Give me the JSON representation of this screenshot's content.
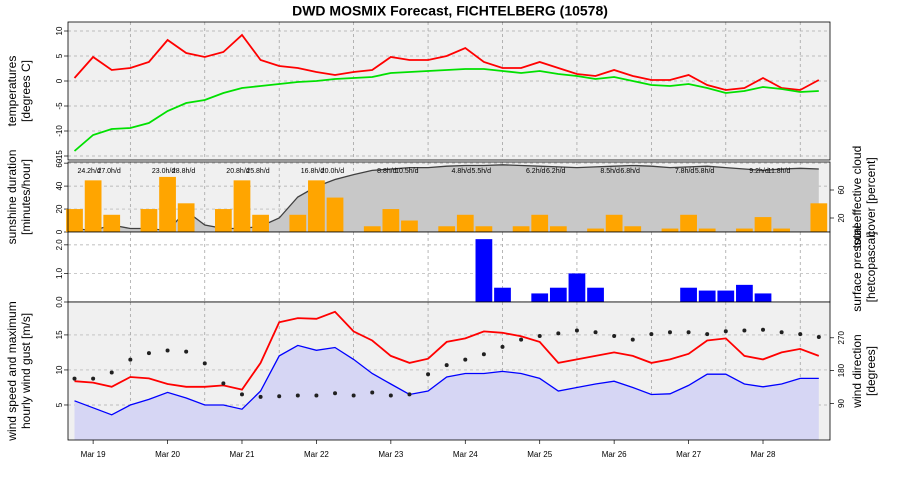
{
  "chart_data": [
    {
      "type": "line",
      "title": "DWD MOSMIX Forecast, FICHTELBERG (10578)",
      "categories": [
        null,
        "Mar 19",
        null,
        null,
        null,
        "Mar 20",
        null,
        null,
        null,
        "Mar 21",
        null,
        null,
        null,
        "Mar 22",
        null,
        null,
        null,
        "Mar 23",
        null,
        null,
        null,
        "Mar 24",
        null,
        null,
        null,
        "Mar 25",
        null,
        null,
        null,
        "Mar 26",
        null,
        null,
        null,
        "Mar 27",
        null,
        null,
        null,
        "Mar 28",
        null,
        null,
        null
      ],
      "xlim": [
        -0.35,
        40.6
      ],
      "ylabel": [
        "temperatures",
        "[degrees C]"
      ],
      "ylim": [
        -15.8,
        11.8
      ],
      "yticks": [
        -15,
        -10,
        -5,
        0,
        5,
        10
      ],
      "grid": true,
      "background": "#f0f0f0",
      "series": [
        {
          "type": "line",
          "color": "#ff0000",
          "values": [
            0.6,
            4.8,
            2.2,
            2.6,
            3.8,
            8.2,
            5.6,
            4.8,
            5.8,
            9.2,
            4.2,
            3.0,
            2.6,
            1.8,
            1.2,
            1.8,
            2.2,
            4.8,
            4.2,
            4.2,
            5.0,
            6.6,
            3.8,
            2.6,
            2.6,
            3.8,
            2.6,
            1.4,
            1.0,
            2.2,
            1.0,
            0.2,
            0.2,
            1.2,
            -0.8,
            -1.8,
            -1.4,
            0.6,
            -1.4,
            -1.8,
            0.2
          ]
        },
        {
          "type": "line",
          "color": "#00e000",
          "values": [
            -14,
            -10.8,
            -9.6,
            -9.4,
            -8.4,
            -6,
            -4.4,
            -3.8,
            -2.4,
            -1.4,
            -1.0,
            -0.6,
            -0.2,
            0,
            0.4,
            0.6,
            0.8,
            1.6,
            1.8,
            2.0,
            2.2,
            2.4,
            2.4,
            2.0,
            1.6,
            2.0,
            1.4,
            1.0,
            0.4,
            0.8,
            0.0,
            -0.8,
            -1.0,
            -0.6,
            -1.4,
            -2.4,
            -2.0,
            -1.2,
            -1.6,
            -2.2,
            -2.0
          ]
        }
      ]
    },
    {
      "type": "bar",
      "ylabel": [
        "sunshine duration",
        "[minutes/hour]"
      ],
      "ylim": [
        0,
        61
      ],
      "yticks": [
        0,
        20,
        40,
        60
      ],
      "grid": true,
      "background": "#f0f0f0",
      "y2label": [
        "total effective cloud",
        "cover [percent]"
      ],
      "y2lim": [
        0,
        100
      ],
      "y2ticks": [
        20,
        60
      ],
      "annotations": [
        "24.2h/d",
        "27.0h/d",
        "23.0h/d",
        "28.8h/d",
        "20.8h/d",
        "25.8h/d",
        "16.8h/d",
        "20.0h/d",
        "8.8h/d",
        "10.5h/d",
        "4.8h/d",
        "5.5h/d",
        "6.2h/d",
        "6.2h/d",
        "8.5h/d",
        "6.8h/d",
        "7.8h/d",
        "5.8h/d",
        "9.2h/d",
        "11.8h/d"
      ],
      "series": [
        {
          "type": "area",
          "axis": "y2",
          "color": "#404040",
          "fill": "#c8c8c8",
          "values": [
            5,
            2,
            10,
            5,
            5,
            2,
            30,
            10,
            5,
            5,
            8,
            20,
            50,
            65,
            75,
            82,
            88,
            90,
            92,
            92,
            94,
            95,
            95,
            96,
            95,
            94,
            93,
            92,
            93,
            94,
            95,
            94,
            92,
            93,
            94,
            92,
            90,
            88,
            90,
            91,
            90
          ]
        },
        {
          "type": "bar",
          "color": "#ffa500",
          "values": [
            20,
            45,
            15,
            0,
            20,
            48,
            25,
            0,
            20,
            45,
            15,
            0,
            15,
            45,
            30,
            0,
            5,
            20,
            10,
            0,
            5,
            15,
            5,
            0,
            5,
            15,
            5,
            0,
            3,
            15,
            5,
            0,
            3,
            15,
            3,
            0,
            3,
            13,
            3,
            0,
            25
          ]
        }
      ]
    },
    {
      "type": "bar",
      "ylim": [
        0,
        2.45
      ],
      "yticks": [
        {
          "value": 0,
          "label": "0.0"
        },
        {
          "value": 1,
          "label": "1.0"
        },
        {
          "value": 2,
          "label": "2.0"
        }
      ],
      "grid": true,
      "background": "#ffffff",
      "y2label": [
        "surface pressure",
        "[hetcopascal]"
      ],
      "series": [
        {
          "type": "bar",
          "color": "#0000ff",
          "values": [
            0,
            0,
            0,
            0,
            0,
            0,
            0,
            0,
            0,
            0,
            0,
            0,
            0,
            0,
            0,
            0,
            0,
            0,
            0,
            0,
            0,
            0,
            2.2,
            0.5,
            0,
            0.3,
            0.5,
            1.0,
            0.5,
            0,
            0,
            0,
            0,
            0.5,
            0.4,
            0.4,
            0.6,
            0.3,
            0,
            0,
            0
          ]
        }
      ]
    },
    {
      "type": "line",
      "ylabel": [
        "wind speed and maximum",
        "hourly wind gust [m/s]"
      ],
      "ylim": [
        0,
        19.7
      ],
      "yticks": [
        5,
        10,
        15
      ],
      "grid": true,
      "background": "#f0f0f0",
      "y2label": [
        "wind direction",
        "[degrees]"
      ],
      "y2lim": [
        -10,
        368
      ],
      "y2ticks": [
        90,
        180,
        270
      ],
      "series": [
        {
          "type": "area",
          "color": "#0000ff",
          "fill": "#d6d6f4",
          "values": [
            5.6,
            4.6,
            3.6,
            5.0,
            5.8,
            6.8,
            6.0,
            5.0,
            5.0,
            4.4,
            7.0,
            12.0,
            13.5,
            12.8,
            13.2,
            11.5,
            9.5,
            8.0,
            6.5,
            7.0,
            9.0,
            9.5,
            9.5,
            9.8,
            9.5,
            8.8,
            7.0,
            7.5,
            8.0,
            8.4,
            7.5,
            6.5,
            6.6,
            7.8,
            9.4,
            9.4,
            8.0,
            7.6,
            8.0,
            8.8,
            8.8
          ]
        },
        {
          "type": "line",
          "color": "#ff0000",
          "values": [
            8.4,
            8.2,
            7.6,
            9.0,
            8.8,
            8.0,
            7.6,
            7.6,
            7.8,
            7.2,
            11.0,
            16.8,
            17.4,
            17.3,
            18.3,
            15.5,
            14.2,
            12.0,
            11.0,
            11.6,
            14.0,
            14.5,
            15.5,
            15.3,
            14.8,
            14.0,
            11.0,
            11.5,
            12.0,
            12.5,
            12.0,
            11.0,
            11.5,
            12.3,
            14.2,
            14.5,
            12.0,
            11.5,
            12.5,
            13.0,
            12.0
          ]
        },
        {
          "type": "points",
          "axis": "y2",
          "color": "#202020",
          "values": [
            158,
            158,
            175,
            210,
            228,
            235,
            232,
            200,
            145,
            115,
            108,
            110,
            112,
            112,
            118,
            112,
            120,
            112,
            115,
            170,
            195,
            210,
            225,
            245,
            265,
            275,
            282,
            290,
            285,
            275,
            265,
            280,
            285,
            285,
            280,
            288,
            290,
            292,
            285,
            280,
            272
          ]
        }
      ]
    }
  ]
}
